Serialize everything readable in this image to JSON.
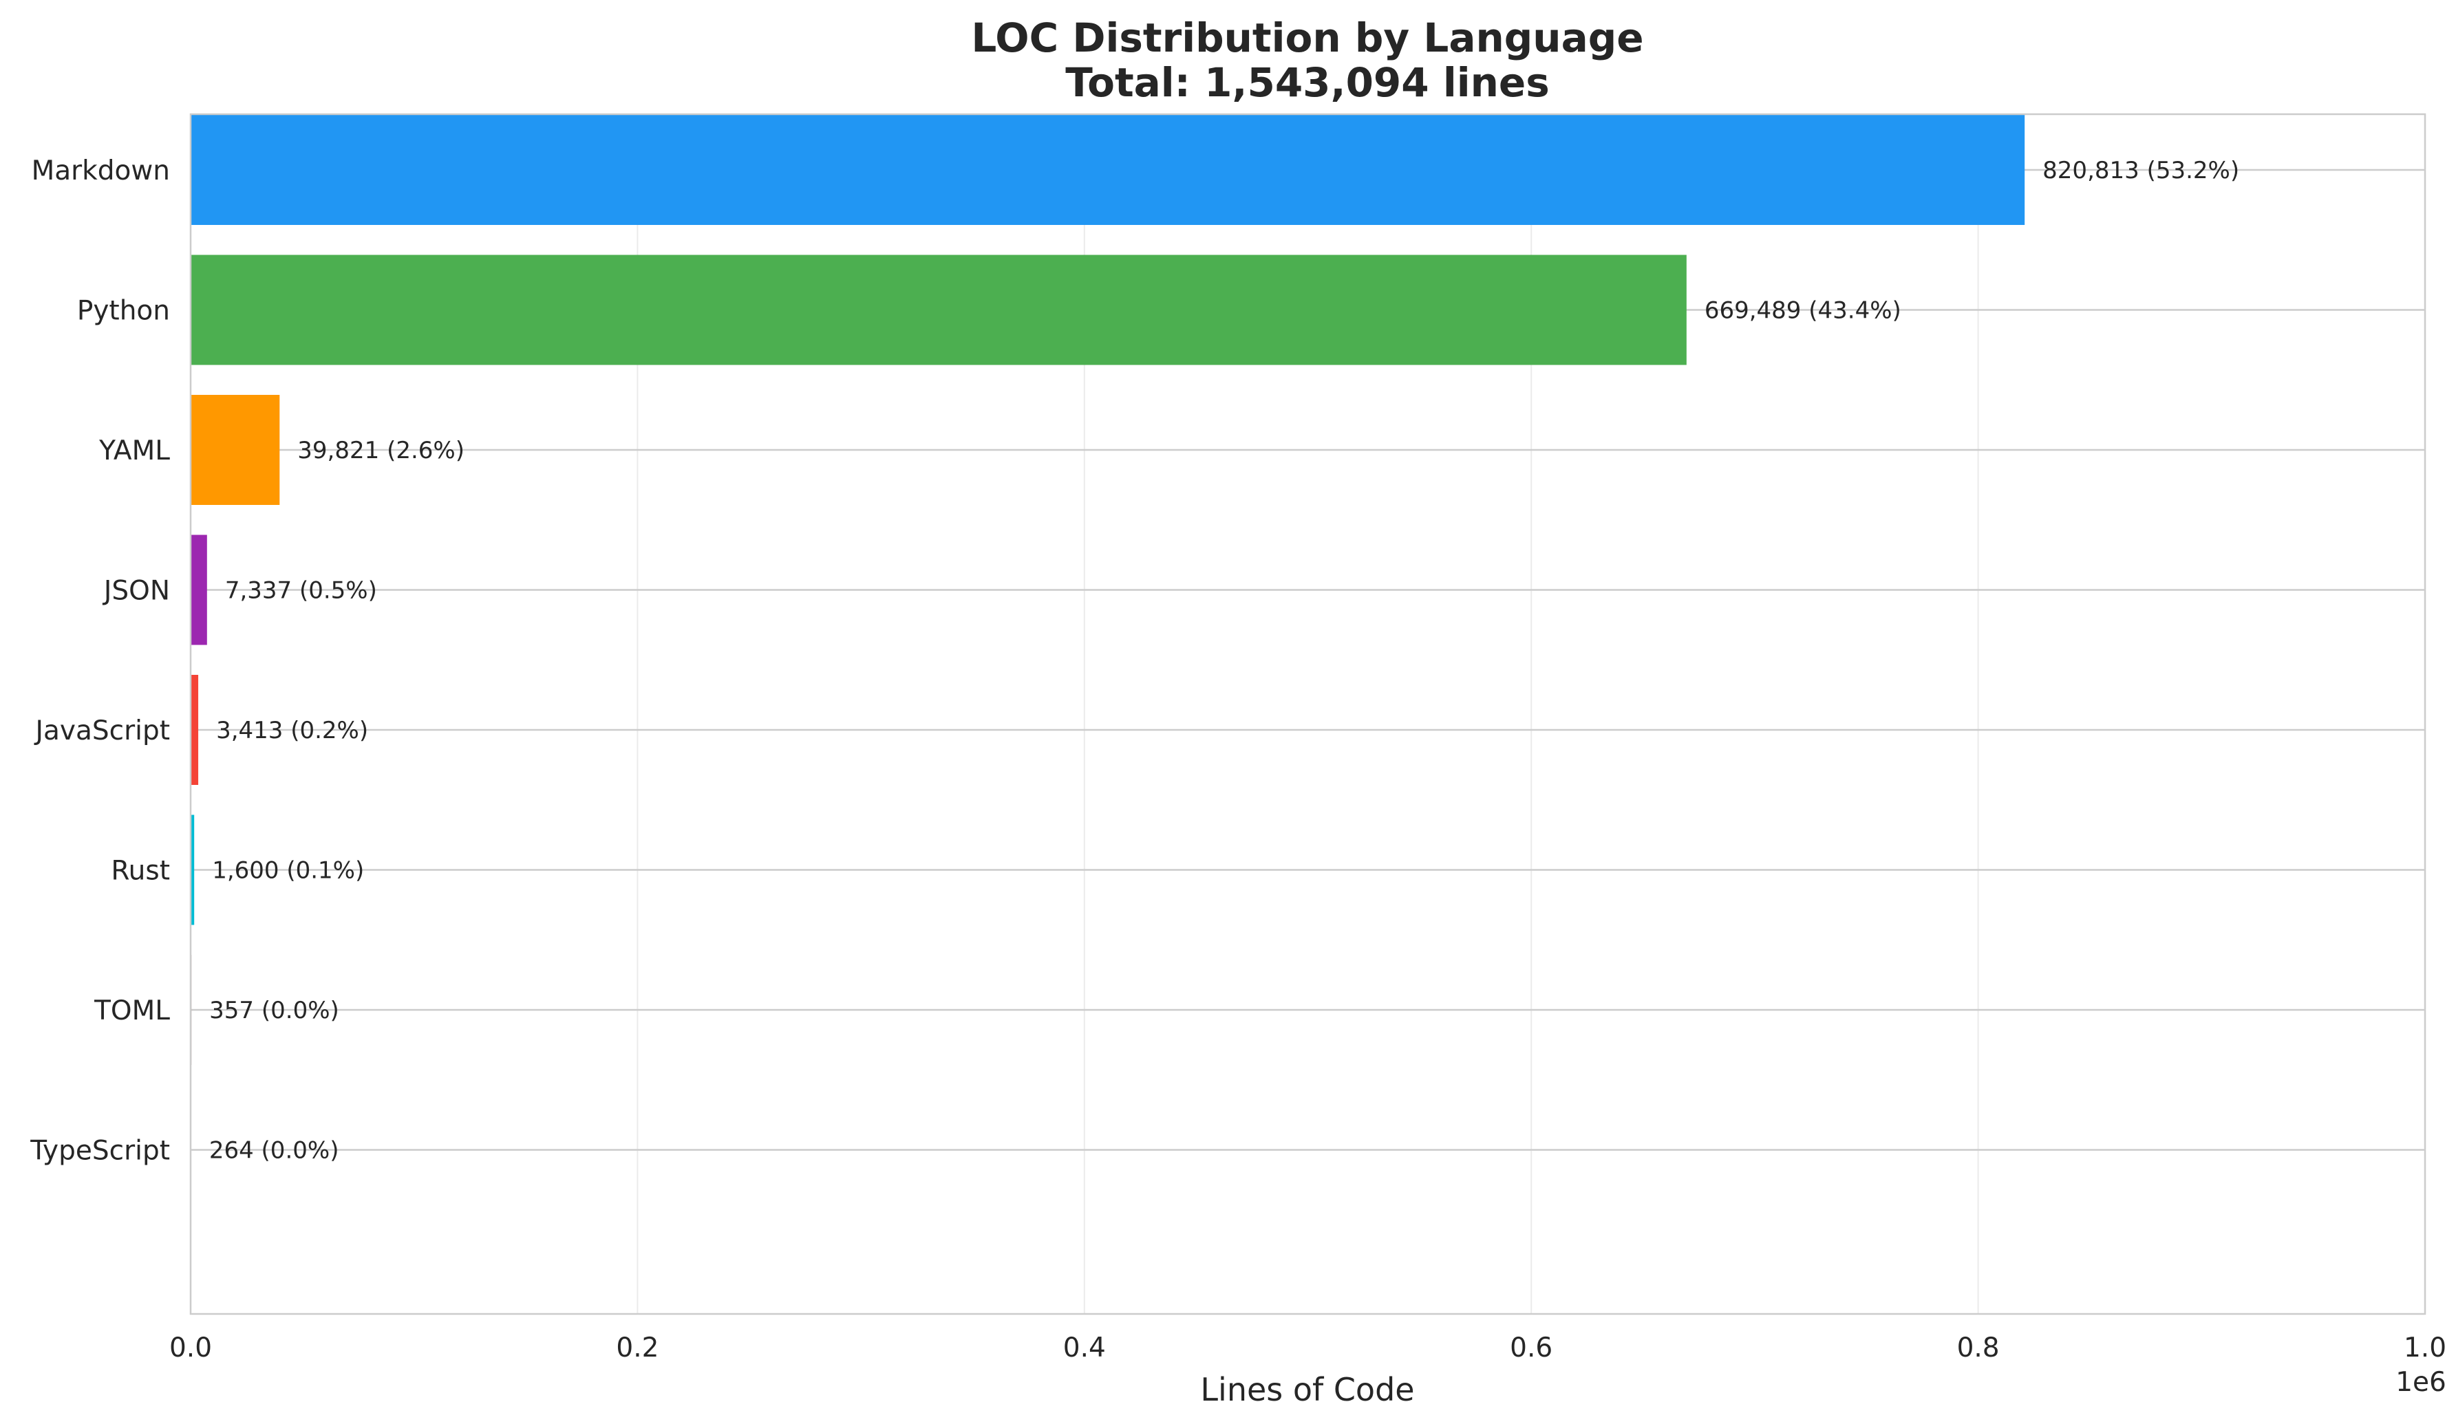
{
  "chart_data": {
    "type": "bar",
    "orientation": "horizontal",
    "title_line1": "LOC Distribution by Language",
    "title_line2": "Total: 1,543,094 lines",
    "xlabel": "Lines of Code",
    "ylabel": "",
    "x_scale_label": "1e6",
    "xlim": [
      0,
      1000000
    ],
    "x_ticks": [
      0,
      200000,
      400000,
      600000,
      800000,
      1000000
    ],
    "x_tick_labels": [
      "0.0",
      "0.2",
      "0.4",
      "0.6",
      "0.8",
      "1.0"
    ],
    "grid": true,
    "categories": [
      "Markdown",
      "Python",
      "YAML",
      "JSON",
      "JavaScript",
      "Rust",
      "TOML",
      "TypeScript"
    ],
    "values": [
      820813,
      669489,
      39821,
      7337,
      3413,
      1600,
      357,
      264
    ],
    "percent_labels": [
      "53.2%",
      "43.4%",
      "2.6%",
      "0.5%",
      "0.2%",
      "0.1%",
      "0.0%",
      "0.0%"
    ],
    "data_labels": [
      "820,813 (53.2%)",
      "669,489 (43.4%)",
      "39,821 (2.6%)",
      "7,337 (0.5%)",
      "3,413 (0.2%)",
      "1,600 (0.1%)",
      "357 (0.0%)",
      "264 (0.0%)"
    ],
    "colors": [
      "#2196F3",
      "#4CAF50",
      "#FF9800",
      "#9C27B0",
      "#F44336",
      "#00BCD4",
      "#795548",
      "#607D8B"
    ]
  }
}
